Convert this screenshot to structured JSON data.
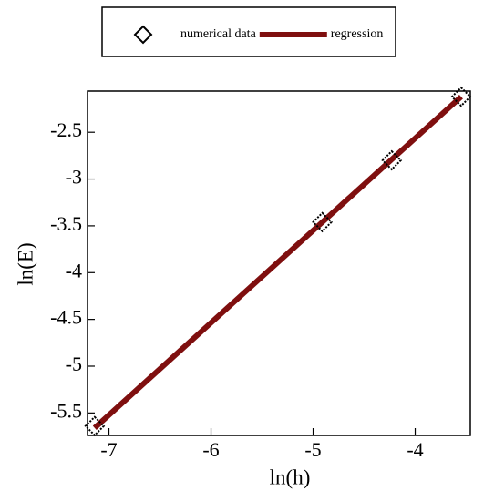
{
  "chart_data": {
    "type": "scatter",
    "xlabel": "ln(h)",
    "ylabel": "ln(E)",
    "xlim": [
      -7.21,
      -3.46
    ],
    "ylim": [
      -5.74,
      -2.06
    ],
    "xticks": [
      -7,
      -6,
      -5,
      -4
    ],
    "yticks": [
      -5.5,
      -5,
      -4.5,
      -4,
      -3.5,
      -3,
      -2.5
    ],
    "legend": "top",
    "series": [
      {
        "name": "numerical data",
        "style": "marker",
        "color": "#000000",
        "x": [
          -7.14,
          -4.91,
          -4.23,
          -3.55
        ],
        "values": [
          -5.64,
          -3.46,
          -2.8,
          -2.12
        ]
      },
      {
        "name": "regression",
        "style": "line",
        "color": "#7f0f0f",
        "x": [
          -7.14,
          -3.55
        ],
        "values": [
          -5.66,
          -2.12
        ]
      }
    ]
  }
}
